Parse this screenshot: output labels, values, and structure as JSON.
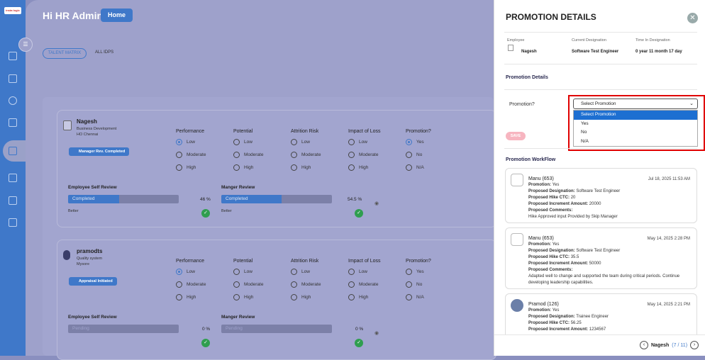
{
  "app": {
    "logo_text": "insta logic"
  },
  "header": {
    "greeting": "Hi HR Admin",
    "home_label": "Home"
  },
  "tabs": [
    "TALENT MATRIX",
    "ALL IDPS"
  ],
  "grid_headers": [
    "Performance",
    "Potential",
    "Attrition Risk",
    "Impact of Loss",
    "Promotion?"
  ],
  "employees": [
    {
      "name": "Nagesh",
      "dept": "Business Development",
      "location": "HO Chennai",
      "status": "Manager Rev. Completed",
      "performance": [
        "Low",
        "Moderate",
        "High"
      ],
      "potential": [
        "Low",
        "Moderate",
        "High"
      ],
      "attrition": [
        "Low",
        "Moderate",
        "High"
      ],
      "impact": [
        "Low",
        "Moderate",
        "High"
      ],
      "promotion": [
        "Yes",
        "No",
        "N/A"
      ],
      "self_review_label": "Employee Self Review",
      "self_status": "Completed",
      "self_pct": "46 %",
      "self_fill": 0.46,
      "self_note": "Better",
      "mgr_review_label": "Manger Review",
      "mgr_status": "Completed",
      "mgr_pct": "54.5 %",
      "mgr_fill": 0.545,
      "mgr_note": "Better"
    },
    {
      "name": "pramodts",
      "dept": "Quality system",
      "location": "Mysore",
      "status": "Appraisal Initiated",
      "performance": [
        "Low",
        "Moderate",
        "High"
      ],
      "potential": [
        "Low",
        "Moderate",
        "High"
      ],
      "attrition": [
        "Low",
        "Moderate",
        "High"
      ],
      "impact": [
        "Low",
        "Moderate",
        "High"
      ],
      "promotion": [
        "Yes",
        "No",
        "N/A"
      ],
      "self_review_label": "Employee Self Review",
      "self_status": "Pending",
      "self_pct": "0 %",
      "self_fill": 0,
      "self_note": "",
      "mgr_review_label": "Manger Review",
      "mgr_status": "Pending",
      "mgr_pct": "0 %",
      "mgr_fill": 0,
      "mgr_note": ""
    }
  ],
  "panel": {
    "title": "PROMOTION DETAILS",
    "employee_label": "Employee",
    "employee_name": "Nagesh",
    "designation_label": "Current Designation",
    "designation_value": "Software Test Engineer",
    "time_label": "Time In Designation",
    "time_value": "0 year 11 month 17 day",
    "promotion_details_label": "Promotion Details",
    "promotion_question": "Promotion?",
    "select_value": "Select Promotion",
    "options": [
      "Select Promotion",
      "Yes",
      "No",
      "N/A"
    ],
    "save_label": "SAVE",
    "workflow_label": "Promotion WorkFlow",
    "workflow": [
      {
        "name": "Manu (653)",
        "date": "Jul 18, 2025 11:53 AM",
        "promotion_k": "Promotion:",
        "promotion_v": "Yes",
        "desig_k": "Proposed Designation:",
        "desig_v": "Software Test Engineer",
        "ctc_k": "Proposed Hike CTC:",
        "ctc_v": "20",
        "inc_k": "Proposed Increment Amount:",
        "inc_v": "20000",
        "comments_k": "Proposed Comments:",
        "comments_v": "Hike Approved input Provided by Skip Manager",
        "comments_v2": ""
      },
      {
        "name": "Manu (653)",
        "date": "May 14, 2025 2:28 PM",
        "promotion_k": "Promotion:",
        "promotion_v": "Yes",
        "desig_k": "Proposed Designation:",
        "desig_v": "Software Test Engineer",
        "ctc_k": "Proposed Hike CTC:",
        "ctc_v": "35.5",
        "inc_k": "Proposed Increment Amount:",
        "inc_v": "50000",
        "comments_k": "Proposed Comments:",
        "comments_v": "Adapted well to change and supported the team during critical periods. Continue",
        "comments_v2": "developing leadership capabilities."
      },
      {
        "name": "Pramod (126)",
        "date": "May 14, 2025 2:21 PM",
        "promotion_k": "Promotion:",
        "promotion_v": "Yes",
        "desig_k": "Proposed Designation:",
        "desig_v": "Trainee Engineer",
        "ctc_k": "Proposed Hike CTC:",
        "ctc_v": "56.25",
        "inc_k": "Proposed Increment Amount:",
        "inc_v": "1234567"
      }
    ],
    "pager_name": "Nagesh",
    "pager_current": "7",
    "pager_sep": "/",
    "pager_total": "11"
  },
  "colors": {
    "accent": "#3f78c9",
    "highlight": "#e00000",
    "success": "#2f9e4f"
  }
}
